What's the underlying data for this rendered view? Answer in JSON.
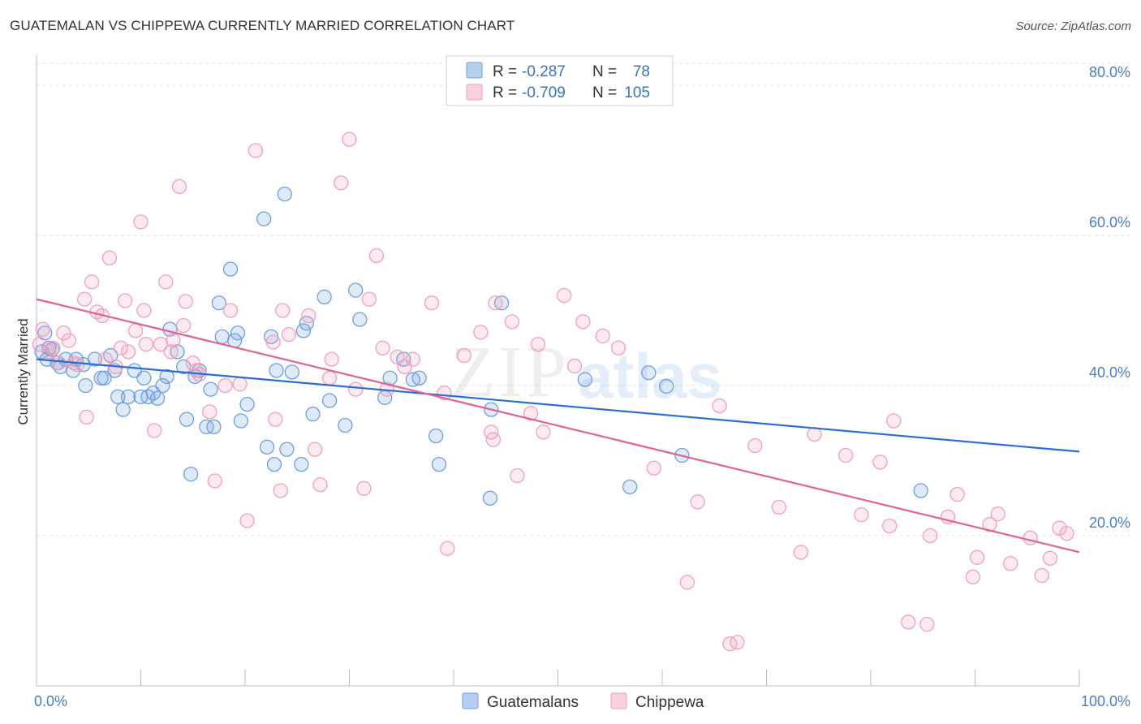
{
  "title": "GUATEMALAN VS CHIPPEWA CURRENTLY MARRIED CORRELATION CHART",
  "source": "Source: ZipAtlas.com",
  "chart_data": {
    "type": "scatter",
    "ylabel": "Currently Married",
    "xlim": [
      0,
      100
    ],
    "ylim": [
      0,
      84
    ],
    "x_tick_labels": [
      "0.0%",
      "100.0%"
    ],
    "y_ticks": [
      {
        "value": 20,
        "label": "20.0%"
      },
      {
        "value": 40,
        "label": "40.0%"
      },
      {
        "value": 60,
        "label": "60.0%"
      },
      {
        "value": 80,
        "label": "80.0%"
      }
    ],
    "grid": true,
    "legend_position": "top-center",
    "watermark": "ZIPatlas",
    "series": [
      {
        "name": "Guatemalans",
        "color": "#6f9fe0",
        "line_color": "#2a6fd0",
        "R_label": "R =",
        "R": "-0.287",
        "N_label": "N =",
        "N": "78",
        "trend": {
          "x": [
            0,
            100
          ],
          "y": [
            43.5,
            31.2
          ]
        },
        "points": [
          [
            0.5,
            44.5
          ],
          [
            0.8,
            47
          ],
          [
            1,
            43.5
          ],
          [
            1.2,
            45
          ],
          [
            1.5,
            44.8
          ],
          [
            2,
            43
          ],
          [
            2.3,
            42.5
          ],
          [
            2.8,
            43.5
          ],
          [
            3.5,
            42
          ],
          [
            3.8,
            43.5
          ],
          [
            4.5,
            42.8
          ],
          [
            4.7,
            40
          ],
          [
            5.6,
            43.5
          ],
          [
            6.2,
            41
          ],
          [
            6.5,
            41
          ],
          [
            7.1,
            44
          ],
          [
            7.5,
            42
          ],
          [
            7.8,
            38.5
          ],
          [
            8.3,
            36.8
          ],
          [
            8.8,
            38.5
          ],
          [
            9.4,
            42
          ],
          [
            10,
            38.5
          ],
          [
            10.3,
            41
          ],
          [
            10.7,
            38.5
          ],
          [
            11.2,
            39
          ],
          [
            11.6,
            38.3
          ],
          [
            12.1,
            40
          ],
          [
            12.5,
            41.2
          ],
          [
            12.8,
            47.5
          ],
          [
            13.5,
            44.5
          ],
          [
            14.1,
            42.5
          ],
          [
            14.4,
            35.5
          ],
          [
            14.8,
            28.2
          ],
          [
            15.2,
            41.2
          ],
          [
            15.6,
            42
          ],
          [
            16.3,
            34.5
          ],
          [
            16.7,
            39.5
          ],
          [
            17,
            34.5
          ],
          [
            17.5,
            51
          ],
          [
            17.8,
            46.5
          ],
          [
            18.6,
            55.5
          ],
          [
            19,
            46
          ],
          [
            19.3,
            47
          ],
          [
            19.6,
            35.3
          ],
          [
            20.2,
            37.5
          ],
          [
            21.8,
            62.2
          ],
          [
            22.1,
            31.8
          ],
          [
            22.5,
            46.5
          ],
          [
            22.8,
            29.5
          ],
          [
            23,
            42
          ],
          [
            23.8,
            65.5
          ],
          [
            24,
            31.5
          ],
          [
            24.5,
            41.8
          ],
          [
            25.4,
            29.5
          ],
          [
            25.6,
            47.3
          ],
          [
            25.9,
            48.3
          ],
          [
            26.5,
            36.2
          ],
          [
            27.6,
            51.8
          ],
          [
            28.1,
            38
          ],
          [
            29.6,
            34.7
          ],
          [
            30.6,
            52.7
          ],
          [
            31,
            48.8
          ],
          [
            33.4,
            38.4
          ],
          [
            33.9,
            41
          ],
          [
            35.2,
            43.5
          ],
          [
            36.1,
            40.8
          ],
          [
            36.7,
            41
          ],
          [
            38.3,
            33.3
          ],
          [
            38.6,
            29.5
          ],
          [
            43.5,
            25
          ],
          [
            43.6,
            36.8
          ],
          [
            44.6,
            51
          ],
          [
            52.6,
            40.8
          ],
          [
            56.9,
            26.5
          ],
          [
            58.7,
            41.7
          ],
          [
            60.4,
            39.9
          ],
          [
            61.9,
            30.7
          ],
          [
            84.8,
            26
          ]
        ]
      },
      {
        "name": "Chippewa",
        "color": "#f0a0bb",
        "line_color": "#e0648f",
        "R_label": "R =",
        "R": "-0.709",
        "N_label": "N =",
        "N": "105",
        "trend": {
          "x": [
            0,
            100
          ],
          "y": [
            51.5,
            17.8
          ]
        },
        "points": [
          [
            0.3,
            45.5
          ],
          [
            0.6,
            47.5
          ],
          [
            1.2,
            44.5
          ],
          [
            1.6,
            45
          ],
          [
            2.1,
            43
          ],
          [
            2.6,
            47
          ],
          [
            3.1,
            46
          ],
          [
            3.6,
            43
          ],
          [
            3.9,
            42.8
          ],
          [
            4.6,
            51.5
          ],
          [
            4.8,
            35.8
          ],
          [
            5.3,
            53.8
          ],
          [
            5.8,
            49.8
          ],
          [
            6.3,
            49.3
          ],
          [
            6.6,
            43.5
          ],
          [
            7,
            57
          ],
          [
            7.6,
            42.5
          ],
          [
            8.1,
            45
          ],
          [
            8.5,
            51.3
          ],
          [
            8.8,
            44.5
          ],
          [
            9.5,
            47.3
          ],
          [
            10,
            61.8
          ],
          [
            10.3,
            50
          ],
          [
            10.5,
            45.5
          ],
          [
            11.3,
            34
          ],
          [
            11.9,
            45.5
          ],
          [
            12.4,
            53.8
          ],
          [
            12.9,
            44.5
          ],
          [
            13.1,
            46
          ],
          [
            13.7,
            66.5
          ],
          [
            14.1,
            48
          ],
          [
            14.3,
            51.2
          ],
          [
            15,
            43
          ],
          [
            15.3,
            42
          ],
          [
            15.6,
            41.5
          ],
          [
            16.6,
            36.5
          ],
          [
            17.1,
            27.3
          ],
          [
            18.1,
            40
          ],
          [
            18.6,
            50
          ],
          [
            19.5,
            40.2
          ],
          [
            20.2,
            22
          ],
          [
            21,
            71.3
          ],
          [
            22.7,
            45.8
          ],
          [
            22.9,
            35.5
          ],
          [
            23.4,
            26
          ],
          [
            23.6,
            50
          ],
          [
            24.2,
            46.8
          ],
          [
            26.1,
            49.3
          ],
          [
            26.7,
            31.5
          ],
          [
            27.2,
            26.8
          ],
          [
            28.1,
            41
          ],
          [
            28.3,
            43.5
          ],
          [
            29.2,
            67
          ],
          [
            30,
            72.8
          ],
          [
            30.6,
            39.5
          ],
          [
            31.4,
            26.3
          ],
          [
            31.9,
            51.5
          ],
          [
            32.6,
            57.3
          ],
          [
            33.2,
            45
          ],
          [
            33.6,
            39.5
          ],
          [
            34.6,
            43.8
          ],
          [
            35.3,
            42.5
          ],
          [
            36.1,
            43.5
          ],
          [
            37.9,
            51
          ],
          [
            39.1,
            39
          ],
          [
            39.4,
            18.3
          ],
          [
            41,
            44
          ],
          [
            42.6,
            47.1
          ],
          [
            43.6,
            33.8
          ],
          [
            43.8,
            32.8
          ],
          [
            44,
            51
          ],
          [
            45.6,
            48.5
          ],
          [
            46.1,
            28
          ],
          [
            47.4,
            36.3
          ],
          [
            48.1,
            45.5
          ],
          [
            48.6,
            33.8
          ],
          [
            50.6,
            52
          ],
          [
            51.6,
            42.6
          ],
          [
            52.4,
            48.5
          ],
          [
            54.3,
            46.6
          ],
          [
            55.8,
            45
          ],
          [
            59.2,
            29
          ],
          [
            62.4,
            13.8
          ],
          [
            63.4,
            24.5
          ],
          [
            65.5,
            37.3
          ],
          [
            66.5,
            5.6
          ],
          [
            67.2,
            5.8
          ],
          [
            68.9,
            32
          ],
          [
            71.2,
            23.8
          ],
          [
            73.3,
            17.8
          ],
          [
            74.6,
            33.5
          ],
          [
            77.6,
            30.7
          ],
          [
            79.1,
            22.8
          ],
          [
            80.9,
            29.8
          ],
          [
            81.8,
            21.3
          ],
          [
            82.2,
            35.3
          ],
          [
            83.6,
            8.5
          ],
          [
            85.4,
            8.2
          ],
          [
            85.7,
            20
          ],
          [
            87.4,
            22.5
          ],
          [
            88.3,
            25.5
          ],
          [
            89.8,
            14.5
          ],
          [
            90.2,
            17.1
          ],
          [
            91.4,
            21.5
          ],
          [
            92.2,
            22.9
          ]
        ]
      }
    ]
  },
  "extra_chippewa_points": [
    [
      93.4,
      16.3
    ],
    [
      95.3,
      19.7
    ],
    [
      96.4,
      14.7
    ],
    [
      97.2,
      17
    ],
    [
      98.1,
      21
    ],
    [
      98.8,
      20.3
    ]
  ]
}
